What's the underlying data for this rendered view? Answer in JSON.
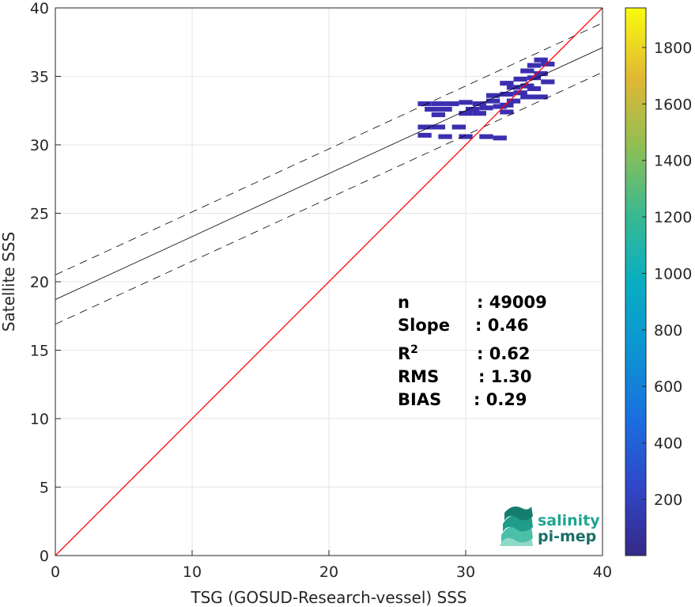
{
  "chart_data": {
    "type": "heatmap",
    "title": "",
    "xlabel": "TSG (GOSUD-Research-vessel) SSS",
    "ylabel": "Satellite SSS",
    "xlim": [
      0,
      40
    ],
    "ylim": [
      0,
      40
    ],
    "xticks": [
      "0",
      "10",
      "20",
      "30",
      "40"
    ],
    "yticks": [
      "0",
      "5",
      "10",
      "15",
      "20",
      "25",
      "30",
      "35",
      "40"
    ],
    "grid": true,
    "colormap": "parula",
    "colorbar": {
      "range": [
        1,
        1940
      ],
      "ticks": [
        "200",
        "400",
        "600",
        "800",
        "1000",
        "1200",
        "1400",
        "1600",
        "1800"
      ],
      "tick_values": [
        200,
        400,
        600,
        800,
        1000,
        1200,
        1400,
        1600,
        1800
      ]
    },
    "lines": {
      "identity": {
        "slope": 1,
        "intercept": 0,
        "color": "#ff0000"
      },
      "regression": {
        "slope": 0.46,
        "intercept": 18.7,
        "color": "#000000"
      },
      "upper_bound": {
        "slope": 0.46,
        "intercept": 20.5,
        "dashed": true
      },
      "lower_bound": {
        "slope": 0.46,
        "intercept": 16.9,
        "dashed": true
      }
    },
    "density_cells": [
      [
        27.0,
        33.0
      ],
      [
        28.0,
        33.0
      ],
      [
        29.0,
        33.0
      ],
      [
        30.0,
        33.1
      ],
      [
        31.0,
        33.0
      ],
      [
        32.0,
        33.2
      ],
      [
        27.5,
        32.6
      ],
      [
        28.5,
        32.6
      ],
      [
        30.5,
        32.6
      ],
      [
        31.5,
        32.7
      ],
      [
        32.5,
        32.8
      ],
      [
        28.0,
        32.2
      ],
      [
        30.0,
        32.3
      ],
      [
        31.0,
        32.3
      ],
      [
        33.0,
        32.4
      ],
      [
        27.0,
        31.3
      ],
      [
        28.0,
        31.3
      ],
      [
        29.5,
        31.3
      ],
      [
        27.0,
        30.7
      ],
      [
        28.5,
        30.6
      ],
      [
        30.0,
        30.6
      ],
      [
        31.5,
        30.6
      ],
      [
        32.5,
        30.5
      ],
      [
        32.0,
        33.6
      ],
      [
        33.0,
        33.7
      ],
      [
        34.0,
        33.8
      ],
      [
        33.5,
        34.2
      ],
      [
        34.5,
        34.3
      ],
      [
        33.0,
        34.5
      ],
      [
        34.0,
        34.8
      ],
      [
        35.0,
        34.9
      ],
      [
        35.5,
        35.2
      ],
      [
        34.5,
        35.4
      ],
      [
        35.0,
        35.8
      ],
      [
        36.0,
        35.9
      ],
      [
        35.5,
        36.2
      ],
      [
        36.0,
        34.6
      ],
      [
        35.0,
        34.1
      ],
      [
        33.5,
        33.2
      ],
      [
        34.5,
        33.5
      ],
      [
        33.0,
        32.9
      ],
      [
        35.5,
        33.5
      ]
    ],
    "stats": [
      {
        "label": "n",
        "value": ": 49009"
      },
      {
        "label": "Slope",
        "value": ": 0.46"
      },
      {
        "label": "R",
        "sup": "2",
        "value": ": 0.62"
      },
      {
        "label": "RMS",
        "value": ": 1.30"
      },
      {
        "label": "BIAS",
        "value": ": 0.29"
      }
    ]
  },
  "logo": {
    "line1": "salinity",
    "line2": "pi-mep"
  }
}
